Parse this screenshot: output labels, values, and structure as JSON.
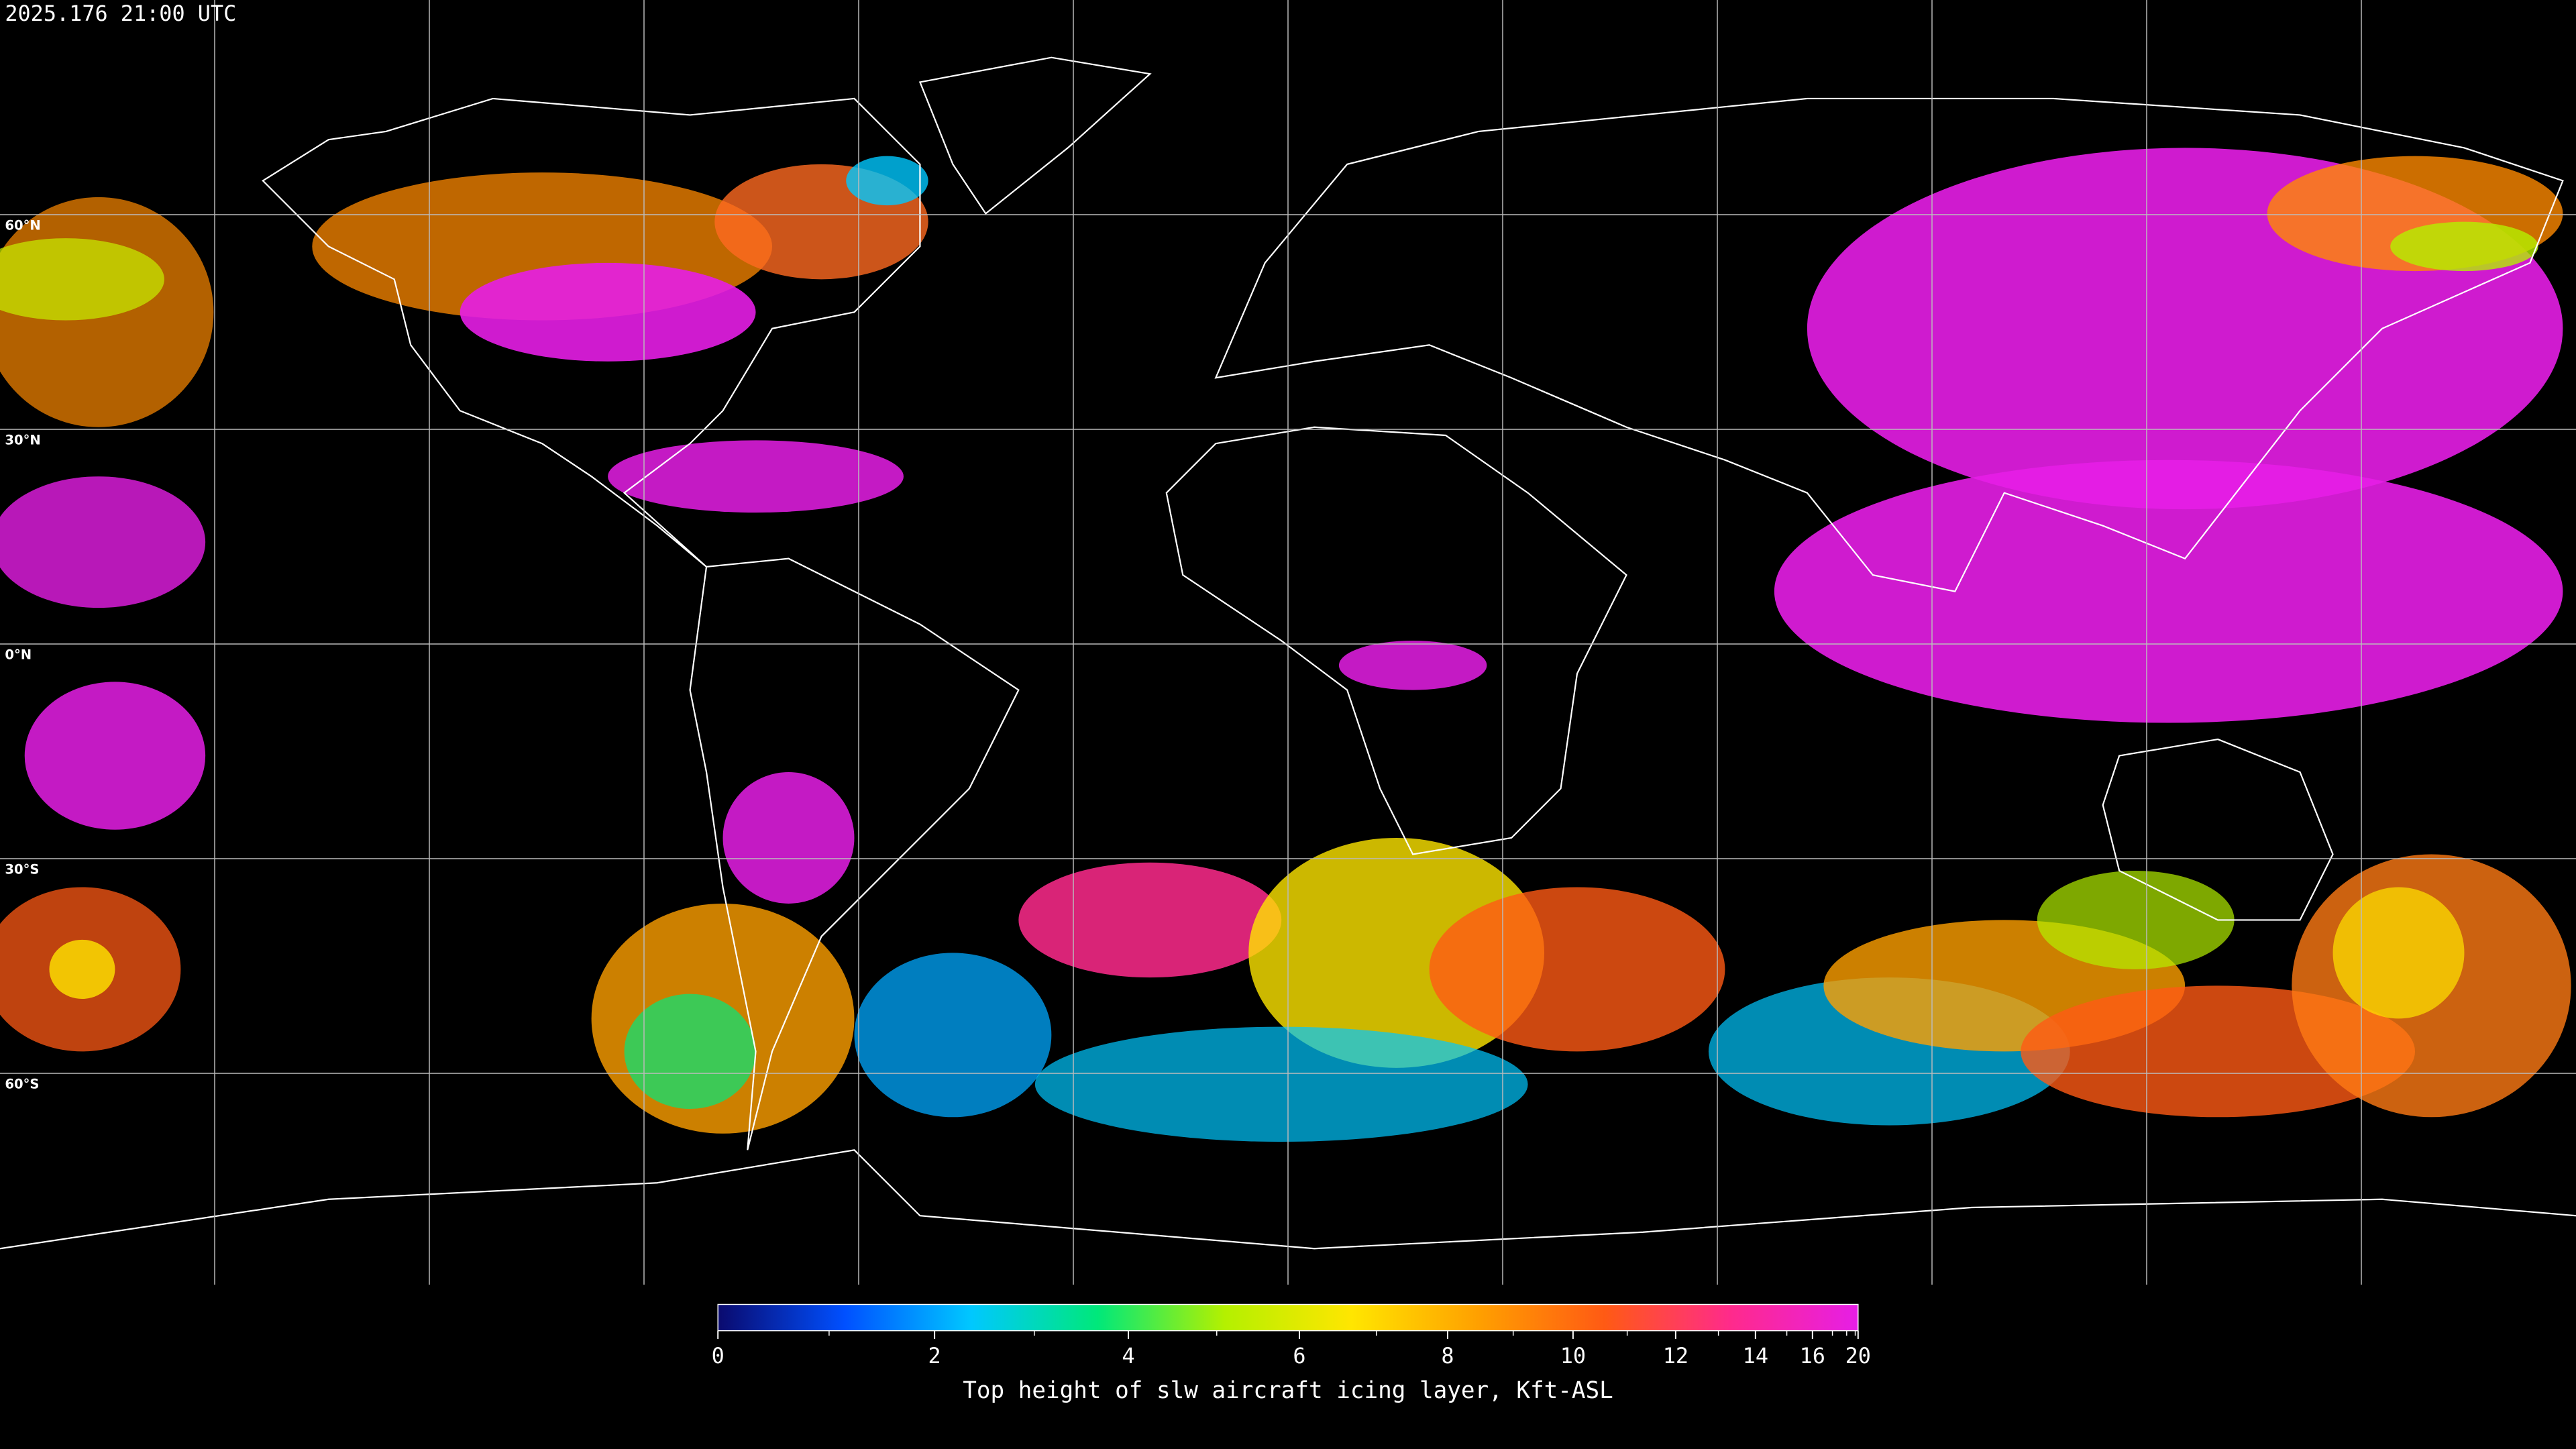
{
  "header": {
    "timestamp": "2025.176 21:00 UTC"
  },
  "map": {
    "lat_labels": [
      {
        "value": 60,
        "label": "60°N"
      },
      {
        "value": 30,
        "label": "30°N"
      },
      {
        "value": 0,
        "label": "0°N"
      },
      {
        "value": -30,
        "label": "30°S"
      },
      {
        "value": -60,
        "label": "60°S"
      }
    ]
  },
  "colorbar": {
    "label": "Top height of slw aircraft icing layer, Kft-ASL",
    "range": [
      0,
      20
    ],
    "ticks": [
      0,
      2,
      4,
      6,
      8,
      10,
      12,
      14,
      16,
      20
    ],
    "minor_ticks": [
      1,
      3,
      5,
      7,
      9,
      11,
      13,
      15,
      17,
      18,
      19
    ],
    "colors": [
      "#0a0a6e",
      "#0050ff",
      "#00c8ff",
      "#00e87a",
      "#b4f000",
      "#ffe600",
      "#ffa000",
      "#ff5a14",
      "#ff2a8c",
      "#e61ee6"
    ]
  }
}
